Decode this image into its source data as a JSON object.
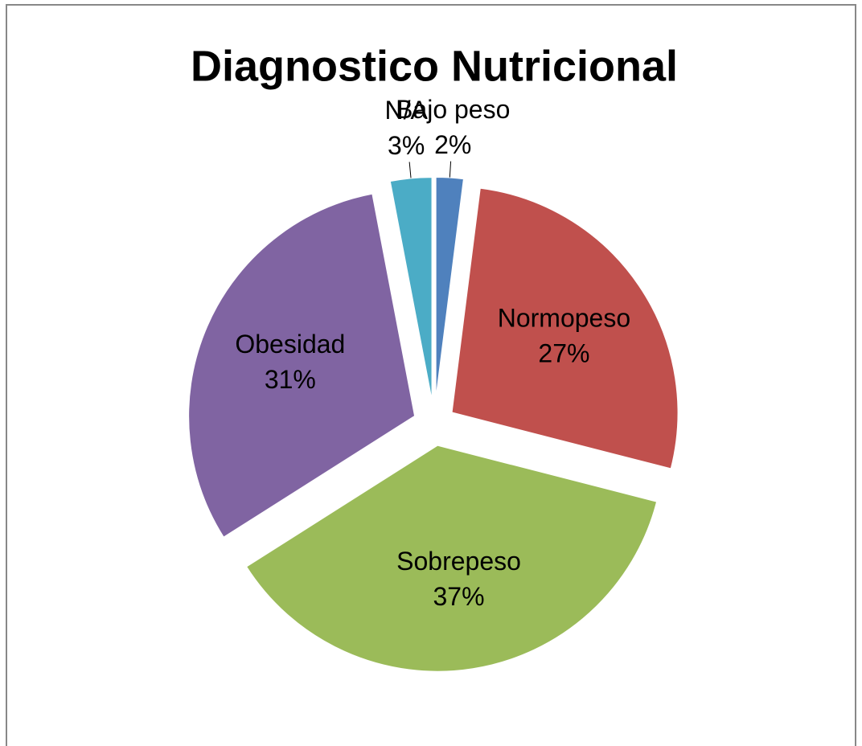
{
  "chart_data": {
    "type": "pie",
    "title": "Diagnostico Nutricional",
    "categories": [
      "Bajo peso",
      "Normopeso",
      "Sobrepeso",
      "Obesidad",
      "N/A"
    ],
    "values": [
      2,
      27,
      37,
      31,
      3
    ],
    "value_labels": [
      "2%",
      "27%",
      "37%",
      "31%",
      "3%"
    ],
    "colors": [
      "#4f81bd",
      "#c0504d",
      "#9bbb59",
      "#8064a2",
      "#4bacc6"
    ]
  }
}
